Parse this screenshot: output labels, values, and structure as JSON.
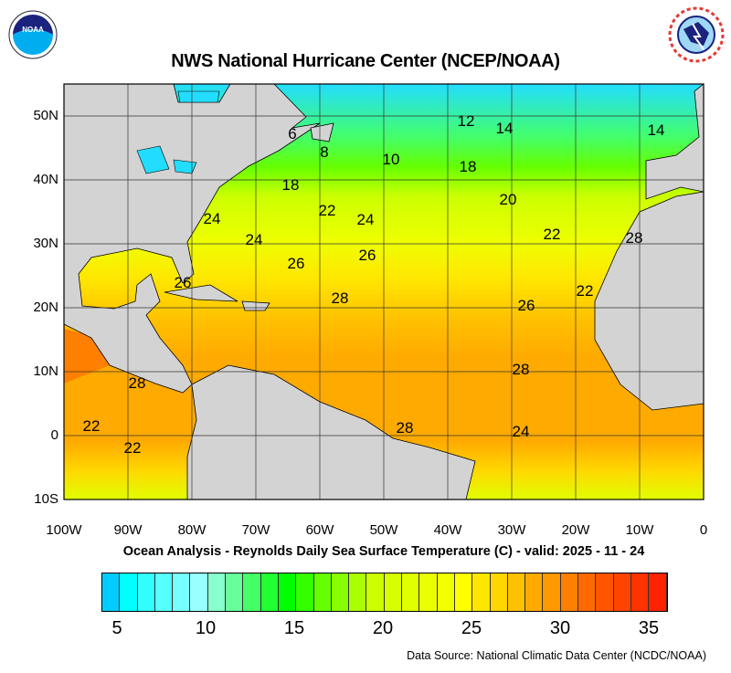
{
  "title": "NWS National Hurricane Center (NCEP/NOAA)",
  "subtitle": "Ocean Analysis - Reynolds Daily Sea Surface Temperature (C) - valid: 2025 - 11 - 24",
  "source": "Data Source: National Climatic Data Center (NCDC/NOAA)",
  "logos": {
    "left": "NOAA",
    "right": "NATIONAL WEATHER SERVICE"
  },
  "map": {
    "lon_labels": [
      "100W",
      "90W",
      "80W",
      "70W",
      "60W",
      "50W",
      "40W",
      "30W",
      "20W",
      "10W",
      "0"
    ],
    "lat_labels": [
      "50N",
      "40N",
      "30N",
      "20N",
      "10N",
      "0",
      "10S"
    ],
    "land_color": "#d3d3d3",
    "contour_labels": [
      "6",
      "8",
      "10",
      "12",
      "14",
      "14",
      "18",
      "18",
      "20",
      "22",
      "22",
      "24",
      "24",
      "26",
      "26",
      "26",
      "28",
      "28",
      "28",
      "28",
      "24",
      "22",
      "22",
      "24",
      "22",
      "26",
      "28"
    ]
  },
  "colorbar": {
    "tick_labels": [
      "5",
      "10",
      "15",
      "20",
      "25",
      "30",
      "35"
    ],
    "colors": [
      "#00ccff",
      "#00ffff",
      "#33ffff",
      "#55ffff",
      "#77ffff",
      "#99ffff",
      "#88ffcc",
      "#66ff99",
      "#44ff66",
      "#22ff33",
      "#00ff00",
      "#33ff00",
      "#66ff00",
      "#88ff00",
      "#aaff00",
      "#ccff00",
      "#d8ff00",
      "#e0ff00",
      "#eaff00",
      "#f2ff00",
      "#ffff00",
      "#ffe600",
      "#ffd700",
      "#ffc000",
      "#ffaa00",
      "#ff9900",
      "#ff8000",
      "#ff6a00",
      "#ff5500",
      "#ff4400",
      "#ff3300",
      "#ff2200"
    ]
  }
}
